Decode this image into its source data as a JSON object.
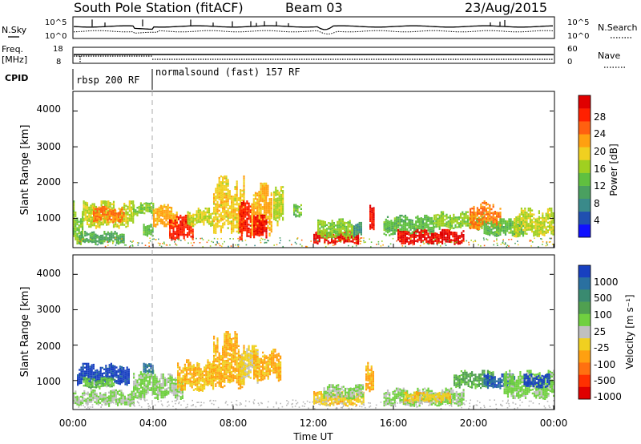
{
  "header": {
    "station": "South Pole Station (fitACF)",
    "beam": "Beam 03",
    "date": "23/Aug/2015"
  },
  "top_panels": {
    "nsky_label": "N.Sky",
    "nsearch_label": "N.Search",
    "nsky_ticks": [
      "10^5",
      "10^0"
    ],
    "nsearch_ticks": [
      "10^5",
      "10^0"
    ],
    "freq_label_line1": "Freq.",
    "freq_label_line2": "[MHz]",
    "freq_ticks": [
      "18",
      "8"
    ],
    "nave_label": "Nave",
    "nave_ticks": [
      "60",
      "0"
    ],
    "cpid_label": "CPID",
    "cpid_segments": [
      {
        "label": "rbsp 200 RF",
        "start_hour": 0,
        "end_hour": 4
      },
      {
        "label": "normalsound (fast) 157 RF",
        "start_hour": 4,
        "end_hour": 24
      }
    ]
  },
  "axes": {
    "ylabel": "Slant Range [km]",
    "xlabel": "Time UT",
    "y_ticks": [
      "1000",
      "2000",
      "3000",
      "4000"
    ],
    "x_ticks": [
      "00:00",
      "04:00",
      "08:00",
      "12:00",
      "16:00",
      "20:00",
      "00:00"
    ]
  },
  "colorbars": {
    "power": {
      "label": "Power [dB]",
      "ticks": [
        "4",
        "8",
        "12",
        "16",
        "20",
        "24",
        "28"
      ],
      "colors": [
        "#1010ff",
        "#2050b0",
        "#3a8a8a",
        "#4aa060",
        "#60c040",
        "#a0d020",
        "#f0d020",
        "#ffa010",
        "#ff6010",
        "#ff2000",
        "#e00000"
      ]
    },
    "velocity": {
      "label": "Velocity [m s⁻¹]",
      "ticks": [
        "1000",
        "500",
        "100",
        "25",
        "-25",
        "-100",
        "-500",
        "-1000"
      ],
      "colors": [
        "#1840c0",
        "#2a70a0",
        "#3a8a70",
        "#50a050",
        "#70d040",
        "#c0c0c0",
        "#f0d020",
        "#ffa010",
        "#ff7010",
        "#ff3000",
        "#e00000"
      ]
    }
  },
  "chart_data": [
    {
      "type": "heatmap",
      "title": "Power",
      "xlabel": "Time UT",
      "ylabel": "Slant Range [km]",
      "xlim_hours": [
        0,
        24
      ],
      "ylim_km": [
        180,
        4550
      ],
      "colorbar_label": "Power [dB]",
      "colorbar_range": [
        0,
        30
      ],
      "regions": [
        {
          "t0": 0.0,
          "t1": 0.5,
          "r0": 300,
          "r1": 1500,
          "v": 14
        },
        {
          "t0": 0.3,
          "t1": 2.5,
          "r0": 300,
          "r1": 650,
          "v": 10
        },
        {
          "t0": 0.5,
          "t1": 3.0,
          "r0": 750,
          "r1": 1500,
          "v": 16
        },
        {
          "t0": 1.0,
          "t1": 2.5,
          "r0": 900,
          "r1": 1350,
          "v": 22
        },
        {
          "t0": 3.0,
          "t1": 4.0,
          "r0": 1100,
          "r1": 1450,
          "v": 14
        },
        {
          "t0": 3.5,
          "t1": 4.0,
          "r0": 500,
          "r1": 850,
          "v": 12
        },
        {
          "t0": 4.0,
          "t1": 5.2,
          "r0": 750,
          "r1": 1400,
          "v": 20
        },
        {
          "t0": 4.8,
          "t1": 6.0,
          "r0": 400,
          "r1": 1100,
          "v": 26
        },
        {
          "t0": 5.7,
          "t1": 7.0,
          "r0": 800,
          "r1": 1300,
          "v": 16
        },
        {
          "t0": 7.0,
          "t1": 8.5,
          "r0": 600,
          "r1": 2200,
          "v": 18
        },
        {
          "t0": 8.3,
          "t1": 8.9,
          "r0": 350,
          "r1": 1500,
          "v": 26
        },
        {
          "t0": 8.9,
          "t1": 9.9,
          "r0": 500,
          "r1": 2000,
          "v": 20
        },
        {
          "t0": 9.0,
          "t1": 9.7,
          "r0": 400,
          "r1": 1100,
          "v": 27
        },
        {
          "t0": 10.0,
          "t1": 10.5,
          "r0": 800,
          "r1": 1900,
          "v": 16
        },
        {
          "t0": 11.0,
          "t1": 11.4,
          "r0": 1000,
          "r1": 1400,
          "v": 12
        },
        {
          "t0": 12.0,
          "t1": 14.2,
          "r0": 300,
          "r1": 650,
          "v": 28
        },
        {
          "t0": 12.2,
          "t1": 14.0,
          "r0": 450,
          "r1": 1000,
          "v": 14
        },
        {
          "t0": 14.0,
          "t1": 14.4,
          "r0": 500,
          "r1": 900,
          "v": 8
        },
        {
          "t0": 14.8,
          "t1": 15.0,
          "r0": 700,
          "r1": 1600,
          "v": 27
        },
        {
          "t0": 15.5,
          "t1": 18.0,
          "r0": 550,
          "r1": 1100,
          "v": 12
        },
        {
          "t0": 16.2,
          "t1": 19.5,
          "r0": 300,
          "r1": 700,
          "v": 28
        },
        {
          "t0": 18.0,
          "t1": 20.5,
          "r0": 700,
          "r1": 1200,
          "v": 14
        },
        {
          "t0": 19.8,
          "t1": 21.3,
          "r0": 700,
          "r1": 1500,
          "v": 22
        },
        {
          "t0": 20.5,
          "t1": 22.5,
          "r0": 500,
          "r1": 1000,
          "v": 12
        },
        {
          "t0": 22.0,
          "t1": 24.0,
          "r0": 500,
          "r1": 1300,
          "v": 16
        }
      ]
    },
    {
      "type": "heatmap",
      "title": "Velocity",
      "xlabel": "Time UT",
      "ylabel": "Slant Range [km]",
      "xlim_hours": [
        0,
        24
      ],
      "ylim_km": [
        180,
        4550
      ],
      "colorbar_label": "Velocity [m s⁻¹]",
      "colorbar_range": [
        -1000,
        1000
      ],
      "regions": [
        {
          "t0": 0.0,
          "t1": 3.0,
          "r0": 300,
          "r1": 750,
          "v": 100
        },
        {
          "t0": 0.2,
          "t1": 2.8,
          "r0": 900,
          "r1": 1500,
          "v": 900
        },
        {
          "t0": 0.5,
          "t1": 2.0,
          "r0": 800,
          "r1": 1100,
          "v": 200
        },
        {
          "t0": 3.0,
          "t1": 4.2,
          "r0": 500,
          "r1": 1300,
          "v": 150
        },
        {
          "t0": 3.5,
          "t1": 4.0,
          "r0": 1200,
          "r1": 1500,
          "v": 700
        },
        {
          "t0": 4.2,
          "t1": 5.5,
          "r0": 500,
          "r1": 1200,
          "v": 120
        },
        {
          "t0": 5.2,
          "t1": 7.0,
          "r0": 700,
          "r1": 1600,
          "v": -250
        },
        {
          "t0": 7.0,
          "t1": 8.5,
          "r0": 800,
          "r1": 2400,
          "v": -300
        },
        {
          "t0": 8.3,
          "t1": 9.2,
          "r0": 900,
          "r1": 2000,
          "v": -150
        },
        {
          "t0": 9.0,
          "t1": 10.4,
          "r0": 1000,
          "r1": 1900,
          "v": -300
        },
        {
          "t0": 12.0,
          "t1": 14.5,
          "r0": 300,
          "r1": 700,
          "v": -200
        },
        {
          "t0": 12.5,
          "t1": 14.5,
          "r0": 500,
          "r1": 900,
          "v": 120
        },
        {
          "t0": 14.6,
          "t1": 15.0,
          "r0": 700,
          "r1": 1600,
          "v": -300
        },
        {
          "t0": 15.5,
          "t1": 19.5,
          "r0": 300,
          "r1": 800,
          "v": 100
        },
        {
          "t0": 16.5,
          "t1": 18.8,
          "r0": 400,
          "r1": 700,
          "v": -200
        },
        {
          "t0": 19.0,
          "t1": 21.0,
          "r0": 800,
          "r1": 1300,
          "v": 300
        },
        {
          "t0": 20.5,
          "t1": 22.0,
          "r0": 800,
          "r1": 1200,
          "v": 800
        },
        {
          "t0": 21.5,
          "t1": 24.0,
          "r0": 500,
          "r1": 1300,
          "v": 150
        },
        {
          "t0": 22.5,
          "t1": 23.8,
          "r0": 800,
          "r1": 1200,
          "v": 900
        }
      ]
    }
  ]
}
